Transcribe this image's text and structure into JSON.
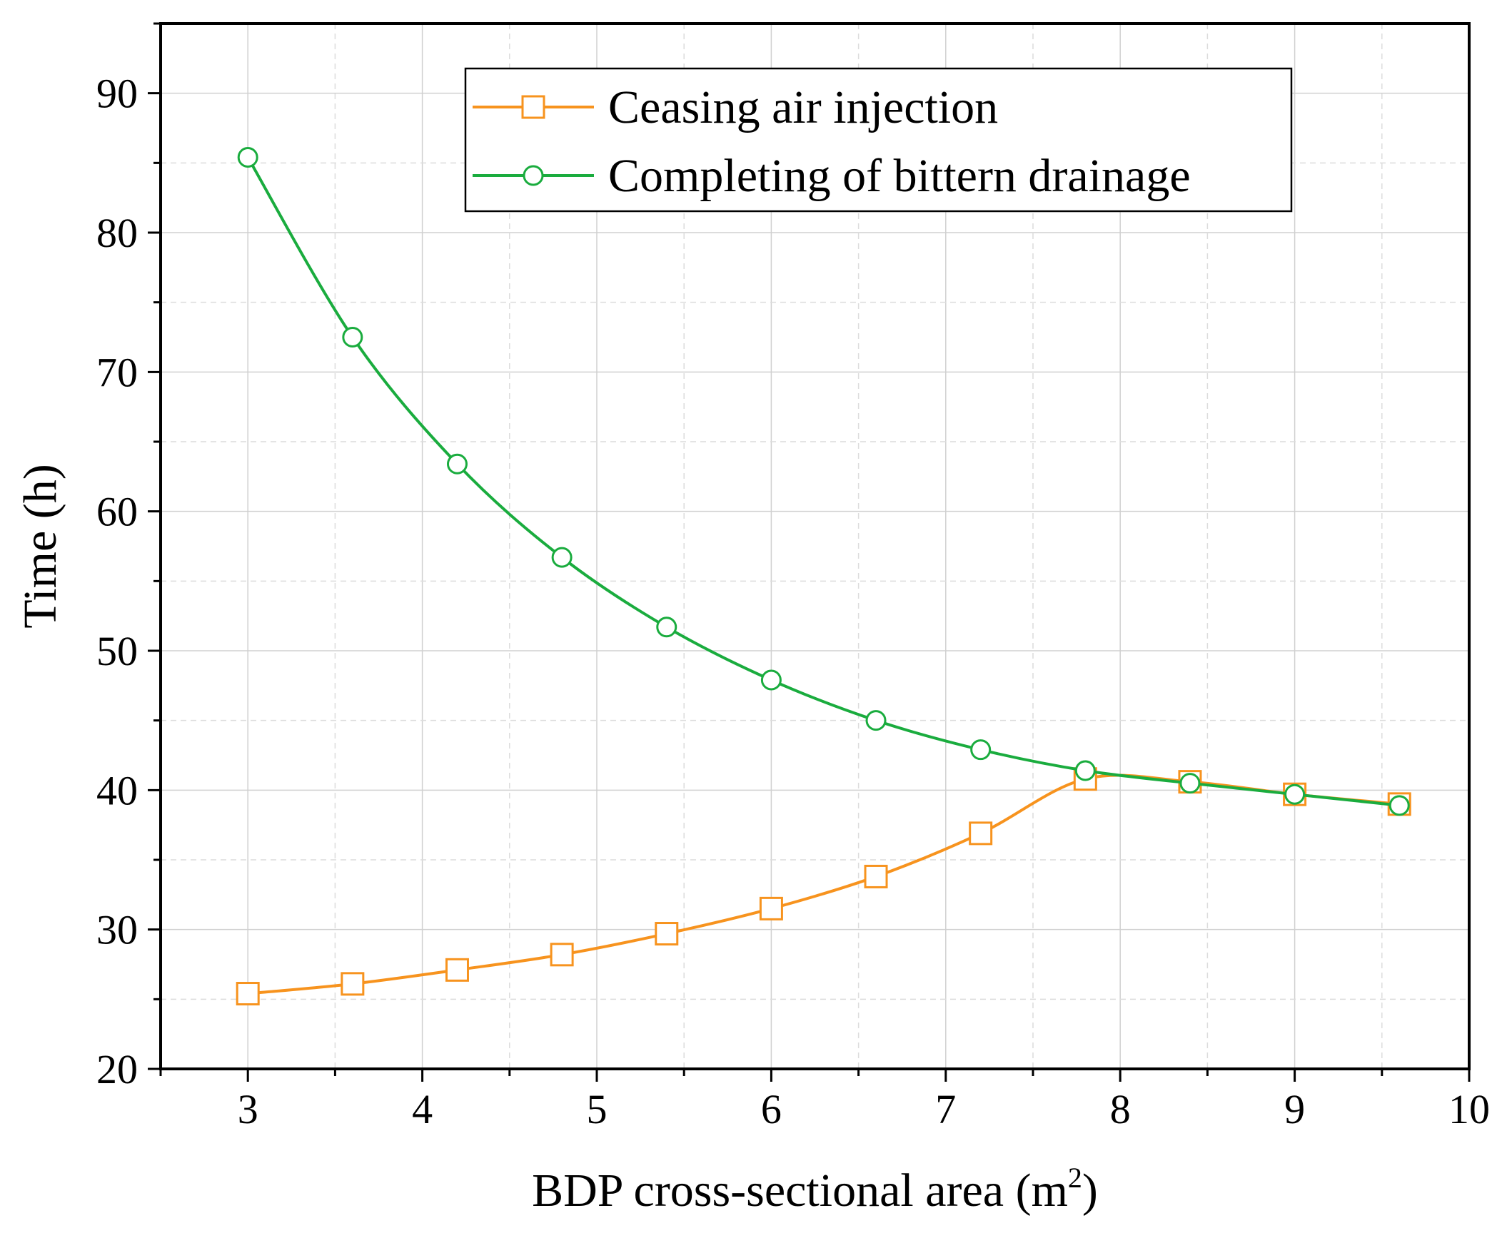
{
  "chart_data": {
    "type": "line",
    "title": "",
    "xlabel": "BDP cross-sectional area (m",
    "xlabel_sup": "2",
    "xlabel_end": ")",
    "ylabel": "Time (h)",
    "xlim": [
      2.5,
      10
    ],
    "ylim": [
      20,
      95
    ],
    "x_ticks": [
      3,
      4,
      5,
      6,
      7,
      8,
      9,
      10
    ],
    "y_ticks": [
      20,
      30,
      40,
      50,
      60,
      70,
      80,
      90
    ],
    "x_tick_labels": [
      "3",
      "4",
      "5",
      "6",
      "7",
      "8",
      "9",
      "10"
    ],
    "y_tick_labels": [
      "20",
      "30",
      "40",
      "50",
      "60",
      "70",
      "80",
      "90"
    ],
    "grid": true,
    "legend_position": "top-right",
    "x": [
      3.0,
      3.6,
      4.2,
      4.8,
      5.4,
      6.0,
      6.6,
      7.2,
      7.8,
      8.4,
      9.0,
      9.6
    ],
    "series": [
      {
        "name": "Ceasing air injection",
        "color": "#f7931e",
        "marker": "square",
        "values": [
          25.4,
          26.1,
          27.1,
          28.2,
          29.7,
          31.5,
          33.8,
          36.9,
          40.8,
          40.6,
          39.7,
          39.0
        ]
      },
      {
        "name": "Completing of bittern drainage",
        "color": "#1aac3e",
        "marker": "circle",
        "values": [
          85.4,
          72.5,
          63.4,
          56.7,
          51.7,
          47.9,
          45.0,
          42.9,
          41.4,
          40.5,
          39.7,
          38.9
        ]
      }
    ]
  }
}
